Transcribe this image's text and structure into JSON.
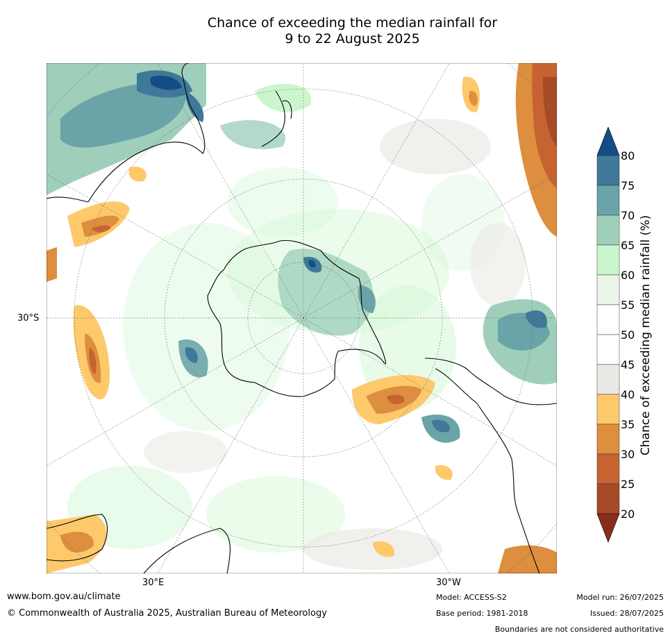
{
  "title": {
    "line1": "Chance of exceeding the median rainfall for",
    "line2": "9 to 22 August 2025"
  },
  "map": {
    "projection_label_left": "30°S",
    "lon_label_east": "30°E",
    "lon_label_west": "30°W"
  },
  "colorbar": {
    "title": "Chance of exceeding median rainfall (%)",
    "ticks": [
      "80",
      "75",
      "70",
      "65",
      "60",
      "55",
      "50",
      "45",
      "40",
      "35",
      "30",
      "25",
      "20"
    ],
    "colors": {
      "over_80": "#124d85",
      "75_80": "#3f7898",
      "70_75": "#6ba4a8",
      "65_70": "#9fcfbb",
      "60_65": "#cbf6cd",
      "55_60": "#eaf4e8",
      "50_55": "#ffffff",
      "45_50": "#ffffff",
      "40_45": "#ebe9e5",
      "35_40": "#fdc96b",
      "30_35": "#dd8e3e",
      "25_30": "#c66331",
      "20_25": "#a64a27",
      "under_20": "#8a2c1c"
    }
  },
  "footer": {
    "website": "www.bom.gov.au/climate",
    "copyright": "© Commonwealth of Australia 2025, Australian Bureau of Meteorology",
    "model": "Model: ACCESS-S2",
    "base_period": "Base period: 1981-2018",
    "model_run": "Model run: 26/07/2025",
    "issued": "Issued: 28/07/2025",
    "disclaimer": "Boundaries are not considered authoritative"
  }
}
